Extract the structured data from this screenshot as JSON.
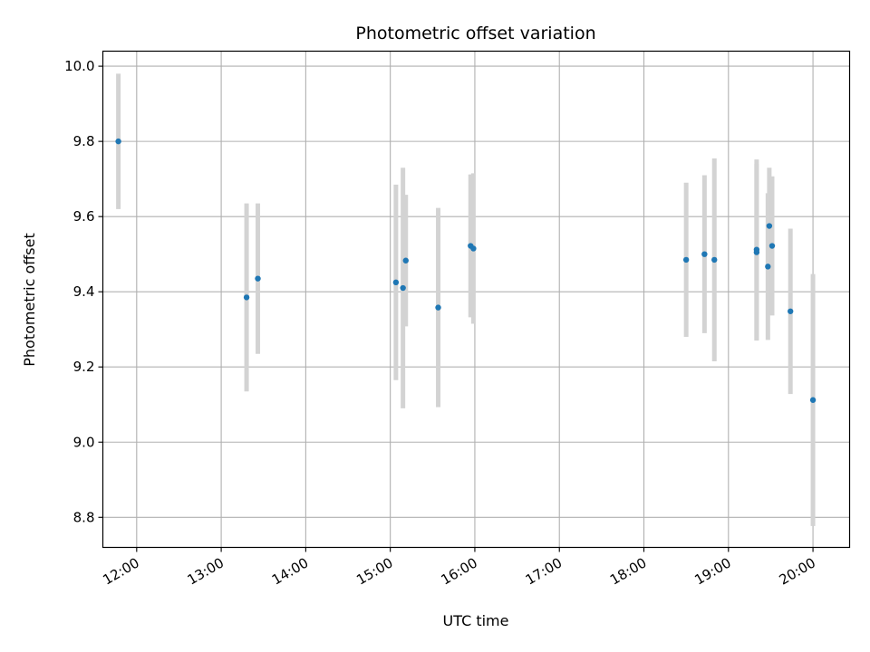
{
  "chart_data": {
    "type": "scatter",
    "title": "Photometric offset variation",
    "xlabel": "UTC time",
    "ylabel": "Photometric offset",
    "x_tick_labels": [
      "12:00",
      "13:00",
      "14:00",
      "15:00",
      "16:00",
      "17:00",
      "18:00",
      "19:00",
      "20:00"
    ],
    "y_ticks": [
      8.8,
      9.0,
      9.2,
      9.4,
      9.6,
      9.8,
      10.0
    ],
    "y_tick_labels": [
      "8.8",
      "9.0",
      "9.2",
      "9.4",
      "9.6",
      "9.8",
      "10.0"
    ],
    "xlim": [
      "11:36",
      "20:26"
    ],
    "ylim": [
      8.72,
      10.04
    ],
    "grid": true,
    "point_color": "#1f77b4",
    "errorbar_color": "#d3d3d3",
    "points": [
      {
        "time": "11:47",
        "offset": 9.8,
        "error": 0.18
      },
      {
        "time": "13:18",
        "offset": 9.385,
        "error": 0.25
      },
      {
        "time": "13:26",
        "offset": 9.435,
        "error": 0.2
      },
      {
        "time": "15:04",
        "offset": 9.425,
        "error": 0.26
      },
      {
        "time": "15:09",
        "offset": 9.41,
        "error": 0.32
      },
      {
        "time": "15:11",
        "offset": 9.483,
        "error": 0.175
      },
      {
        "time": "15:34",
        "offset": 9.358,
        "error": 0.265
      },
      {
        "time": "15:57",
        "offset": 9.522,
        "error": 0.19
      },
      {
        "time": "15:59",
        "offset": 9.515,
        "error": 0.2
      },
      {
        "time": "18:30",
        "offset": 9.485,
        "error": 0.205
      },
      {
        "time": "18:43",
        "offset": 9.5,
        "error": 0.21
      },
      {
        "time": "18:50",
        "offset": 9.485,
        "error": 0.27
      },
      {
        "time": "19:20",
        "offset": 9.505,
        "error": 0.235
      },
      {
        "time": "19:20",
        "offset": 9.512,
        "error": 0.24
      },
      {
        "time": "19:28",
        "offset": 9.467,
        "error": 0.195
      },
      {
        "time": "19:29",
        "offset": 9.575,
        "error": 0.155
      },
      {
        "time": "19:31",
        "offset": 9.522,
        "error": 0.185
      },
      {
        "time": "19:44",
        "offset": 9.348,
        "error": 0.22
      },
      {
        "time": "20:00",
        "offset": 9.112,
        "error": 0.335
      }
    ]
  }
}
